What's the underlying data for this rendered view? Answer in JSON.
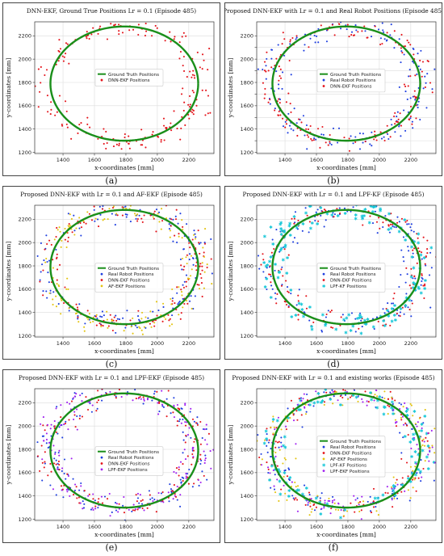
{
  "style": {
    "colors": {
      "ground_truth": "#1a8f1a",
      "dnn_ekf": "#e4141b",
      "real_robot": "#1f3fe0",
      "af_ekf": "#e3c410",
      "lpf_kf": "#18c7d8",
      "lpf_ekf": "#a020f0"
    }
  },
  "chart_data": [
    {
      "id": "a",
      "caption": "(a)",
      "type": "scatter",
      "title": "DNN-EKF, Ground True Positions Lr = 0.1 (Episode 485)",
      "xlabel": "x-coordinates [mm]",
      "ylabel": "y-coordinates [mm]",
      "xlim": [
        1220,
        2360
      ],
      "ylim": [
        1190,
        2320
      ],
      "xticks": [
        1400,
        1600,
        1800,
        2000,
        2200
      ],
      "yticks": [
        1200,
        1400,
        1600,
        1800,
        2000,
        2200
      ],
      "grid": true,
      "legend_position": "center",
      "legend_top_frac": 0.36,
      "ground_truth": {
        "name": "Ground Truth Positions",
        "cx": 1790,
        "cy": 1790,
        "rx": 470,
        "ry": 490
      },
      "series": [
        {
          "name": "DNN-EKF Positions",
          "color_key": "dnn_ekf",
          "marker": "dot",
          "n": 190,
          "seed": 11,
          "spread_mm": 65
        }
      ]
    },
    {
      "id": "b",
      "caption": "(b)",
      "type": "scatter",
      "title": "Proposed DNN-EKF with Lr = 0.1 and Real Robot Positions (Episode 485)",
      "xlabel": "x-coordinates [mm]",
      "ylabel": "y-coordinates [mm]",
      "xlim": [
        1220,
        2360
      ],
      "ylim": [
        1190,
        2320
      ],
      "xticks": [
        1400,
        1600,
        1800,
        2000,
        2200
      ],
      "yticks": [
        1200,
        1300,
        1400,
        1500,
        1600,
        1700,
        1800,
        1900,
        2000,
        2100,
        2200
      ],
      "ytick_labels_every": 2,
      "grid": true,
      "legend_position": "center",
      "legend_top_frac": 0.36,
      "ground_truth": {
        "name": "Ground Truth Positions",
        "cx": 1790,
        "cy": 1790,
        "rx": 470,
        "ry": 490
      },
      "series": [
        {
          "name": "Real Robot Positions",
          "color_key": "real_robot",
          "marker": "dot",
          "n": 170,
          "seed": 22,
          "spread_mm": 70
        },
        {
          "name": "DNN-EKF Positions",
          "color_key": "dnn_ekf",
          "marker": "dot",
          "n": 170,
          "seed": 23,
          "spread_mm": 60
        }
      ]
    },
    {
      "id": "c",
      "caption": "(c)",
      "type": "scatter",
      "title": "Proposed DNN-EKF with Lr = 0.1 and AF-EKF (Episode 485)",
      "xlabel": "x-coordinates [mm]",
      "ylabel": "y-coordinates [mm]",
      "xlim": [
        1220,
        2360
      ],
      "ylim": [
        1190,
        2320
      ],
      "xticks": [
        1400,
        1600,
        1800,
        2000,
        2200
      ],
      "yticks": [
        1200,
        1400,
        1600,
        1800,
        2000,
        2200
      ],
      "grid": true,
      "legend_position": "center",
      "legend_top_frac": 0.44,
      "ground_truth": {
        "name": "Ground Truth Positions",
        "cx": 1790,
        "cy": 1790,
        "rx": 470,
        "ry": 490
      },
      "series": [
        {
          "name": "Real Robot Positions",
          "color_key": "real_robot",
          "marker": "dot",
          "n": 150,
          "seed": 31,
          "spread_mm": 70
        },
        {
          "name": "DNN-EKF Positions",
          "color_key": "dnn_ekf",
          "marker": "dot",
          "n": 150,
          "seed": 32,
          "spread_mm": 60
        },
        {
          "name": "AF-EKF Positions",
          "color_key": "af_ekf",
          "marker": "dot",
          "n": 150,
          "seed": 33,
          "spread_mm": 65
        }
      ]
    },
    {
      "id": "d",
      "caption": "(d)",
      "type": "scatter",
      "title": "Proposed DNN-EKF with Lr = 0.1 and LPF-KF (Episode 485)",
      "xlabel": "x-coordinates [mm]",
      "ylabel": "y-coordinates [mm]",
      "xlim": [
        1220,
        2360
      ],
      "ylim": [
        1190,
        2320
      ],
      "xticks": [
        1400,
        1600,
        1800,
        2000,
        2200
      ],
      "yticks": [
        1200,
        1400,
        1600,
        1800,
        2000,
        2200
      ],
      "grid": true,
      "legend_position": "center",
      "legend_top_frac": 0.44,
      "ground_truth": {
        "name": "Ground Truth Positions",
        "cx": 1790,
        "cy": 1790,
        "rx": 470,
        "ry": 490
      },
      "series": [
        {
          "name": "Real Robot Positions",
          "color_key": "real_robot",
          "marker": "dot",
          "n": 150,
          "seed": 41,
          "spread_mm": 70
        },
        {
          "name": "DNN-EKF Positions",
          "color_key": "dnn_ekf",
          "marker": "dot",
          "n": 150,
          "seed": 42,
          "spread_mm": 60
        },
        {
          "name": "LPF-KF Positions",
          "color_key": "lpf_kf",
          "marker": "star",
          "n": 150,
          "seed": 43,
          "spread_mm": 55
        }
      ]
    },
    {
      "id": "e",
      "caption": "(e)",
      "type": "scatter",
      "title": "Proposed DNN-EKF with Lr = 0.1 and LPF-EKF (Episode 485)",
      "xlabel": "x-coordinates [mm]",
      "ylabel": "y-coordinates [mm]",
      "xlim": [
        1220,
        2360
      ],
      "ylim": [
        1190,
        2320
      ],
      "xticks": [
        1400,
        1600,
        1800,
        2000,
        2200
      ],
      "yticks": [
        1200,
        1400,
        1600,
        1800,
        2000,
        2200
      ],
      "grid": true,
      "legend_position": "center",
      "legend_top_frac": 0.44,
      "ground_truth": {
        "name": "Ground Truth Positions",
        "cx": 1790,
        "cy": 1790,
        "rx": 470,
        "ry": 490
      },
      "series": [
        {
          "name": "Real Robot Positions",
          "color_key": "real_robot",
          "marker": "dot",
          "n": 150,
          "seed": 51,
          "spread_mm": 70
        },
        {
          "name": "DNN-EKF Positions",
          "color_key": "dnn_ekf",
          "marker": "dot",
          "n": 150,
          "seed": 52,
          "spread_mm": 60
        },
        {
          "name": "LPF-EKF Positions",
          "color_key": "lpf_ekf",
          "marker": "dot",
          "n": 150,
          "seed": 53,
          "spread_mm": 65
        }
      ]
    },
    {
      "id": "f",
      "caption": "(f)",
      "type": "scatter",
      "title": "Proposed DNN-EKF with Lr = 0.1 and existing works (Episode 485)",
      "xlabel": "x-coordinates [mm]",
      "ylabel": "y-coordinates [mm]",
      "xlim": [
        1220,
        2360
      ],
      "ylim": [
        1190,
        2320
      ],
      "xticks": [
        1400,
        1600,
        1800,
        2000,
        2200
      ],
      "yticks": [
        1200,
        1400,
        1600,
        1800,
        2000,
        2200
      ],
      "grid": true,
      "legend_position": "center",
      "legend_top_frac": 0.36,
      "ground_truth": {
        "name": "Ground Truth Positions",
        "cx": 1790,
        "cy": 1790,
        "rx": 470,
        "ry": 490
      },
      "series": [
        {
          "name": "Real Robot Positions",
          "color_key": "real_robot",
          "marker": "dot",
          "n": 110,
          "seed": 61,
          "spread_mm": 70
        },
        {
          "name": "DNN-EKF Positions",
          "color_key": "dnn_ekf",
          "marker": "dot",
          "n": 110,
          "seed": 62,
          "spread_mm": 60
        },
        {
          "name": "AF-EKF Positions",
          "color_key": "af_ekf",
          "marker": "dot",
          "n": 110,
          "seed": 63,
          "spread_mm": 65
        },
        {
          "name": "LPF-KF Positions",
          "color_key": "lpf_kf",
          "marker": "star",
          "n": 110,
          "seed": 64,
          "spread_mm": 55
        },
        {
          "name": "LPF-EKF Positions",
          "color_key": "lpf_ekf",
          "marker": "dot",
          "n": 110,
          "seed": 65,
          "spread_mm": 65
        }
      ]
    }
  ]
}
